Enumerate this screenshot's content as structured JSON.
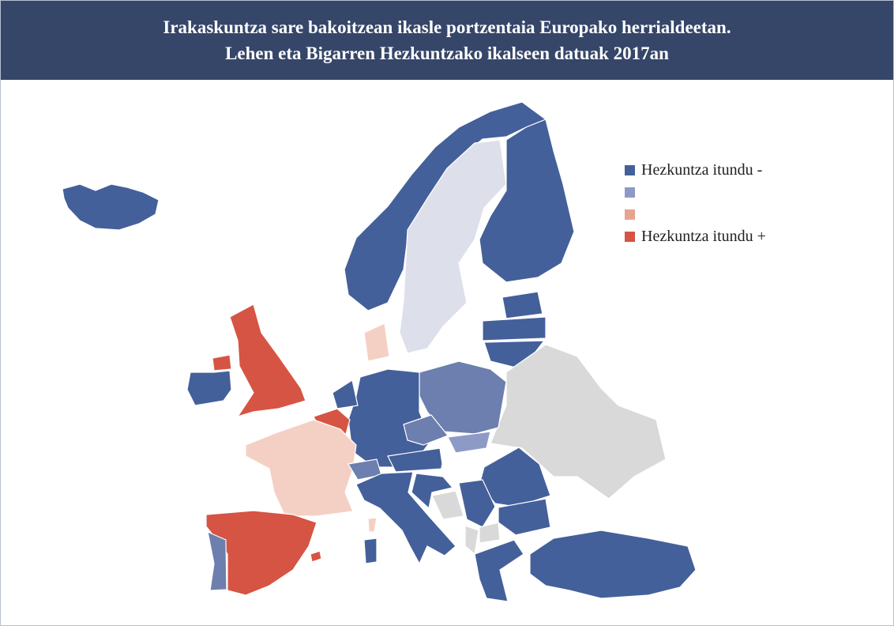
{
  "header": {
    "title": [
      "Irakaskuntza sare bakoitzean ikasle portzentaia Europako herrialdeetan.",
      "Lehen eta Bigarren Hezkuntzako ikalseen datuak 2017an"
    ]
  },
  "legend": [
    {
      "color": "#44609a",
      "label": "Hezkuntza itundu -"
    },
    {
      "color": "#8e9ac6"
    },
    {
      "color": "#e9a28f"
    },
    {
      "color": "#d65443",
      "label": "Hezkuntza itundu +"
    }
  ]
}
